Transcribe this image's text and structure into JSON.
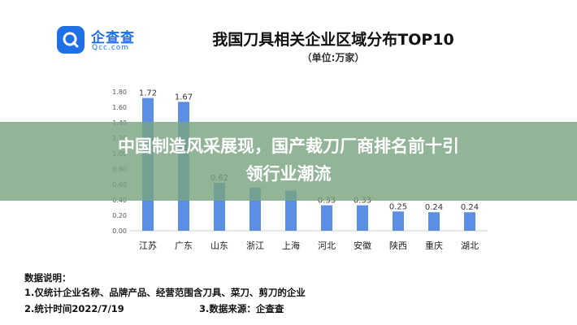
{
  "logo": {
    "cn": "企查查",
    "en": "Qcc.com"
  },
  "chart_data": {
    "type": "bar",
    "title": "我国刀具相关企业区域分布TOP10",
    "subtitle": "（单位:万家）",
    "categories": [
      "江苏",
      "广东",
      "山东",
      "浙江",
      "上海",
      "河北",
      "安徽",
      "陕西",
      "重庆",
      "湖北"
    ],
    "values": [
      1.72,
      1.67,
      0.62,
      0.56,
      0.52,
      0.33,
      0.33,
      0.25,
      0.24,
      0.24
    ],
    "value_labels": [
      "1.72",
      "1.67",
      "0.62",
      "",
      "",
      "0.33",
      "0.33",
      "0.25",
      "0.24",
      "0.24"
    ],
    "ylim": [
      0,
      1.8
    ],
    "yticks": [
      "0.00",
      "0.20",
      "0.40",
      "0.60",
      "0.80",
      "1.00",
      "1.20",
      "1.40",
      "1.60",
      "1.80"
    ],
    "grid": false,
    "bar_color": "#5b8fe6"
  },
  "banner": {
    "line1": "中国制造风采展现，国产裁刀厂商排名前十引",
    "line2": "领行业潮流"
  },
  "notes": {
    "title": "数据说明：",
    "item1": "1.仅统计企业名称、品牌产品、经营范围含刀具、菜刀、剪刀的企业",
    "item2": "2.统计时间2022/7/19",
    "item3": "3.数据来源：企查查"
  }
}
